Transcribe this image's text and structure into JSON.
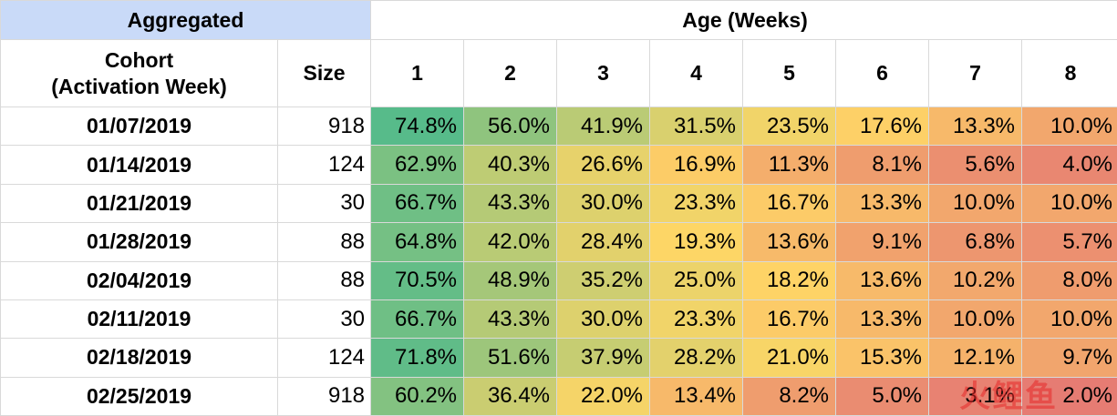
{
  "header": {
    "aggregated": "Aggregated",
    "age": "Age (Weeks)",
    "cohort_line1": "Cohort",
    "cohort_line2": "(Activation Week)",
    "size": "Size",
    "weeks": [
      "1",
      "2",
      "3",
      "4",
      "5",
      "6",
      "7",
      "8"
    ]
  },
  "rows": [
    {
      "date": "01/07/2019",
      "size": "918",
      "values": [
        "74.8%",
        "56.0%",
        "41.9%",
        "31.5%",
        "23.5%",
        "17.6%",
        "13.3%",
        "10.0%"
      ]
    },
    {
      "date": "01/14/2019",
      "size": "124",
      "values": [
        "62.9%",
        "40.3%",
        "26.6%",
        "16.9%",
        "11.3%",
        "8.1%",
        "5.6%",
        "4.0%"
      ]
    },
    {
      "date": "01/21/2019",
      "size": "30",
      "values": [
        "66.7%",
        "43.3%",
        "30.0%",
        "23.3%",
        "16.7%",
        "13.3%",
        "10.0%",
        "10.0%"
      ]
    },
    {
      "date": "01/28/2019",
      "size": "88",
      "values": [
        "64.8%",
        "42.0%",
        "28.4%",
        "19.3%",
        "13.6%",
        "9.1%",
        "6.8%",
        "5.7%"
      ]
    },
    {
      "date": "02/04/2019",
      "size": "88",
      "values": [
        "70.5%",
        "48.9%",
        "35.2%",
        "25.0%",
        "18.2%",
        "13.6%",
        "10.2%",
        "8.0%"
      ]
    },
    {
      "date": "02/11/2019",
      "size": "30",
      "values": [
        "66.7%",
        "43.3%",
        "30.0%",
        "23.3%",
        "16.7%",
        "13.3%",
        "10.0%",
        "10.0%"
      ]
    },
    {
      "date": "02/18/2019",
      "size": "124",
      "values": [
        "71.8%",
        "51.6%",
        "37.9%",
        "28.2%",
        "21.0%",
        "15.3%",
        "12.1%",
        "9.7%"
      ]
    },
    {
      "date": "02/25/2019",
      "size": "918",
      "values": [
        "60.2%",
        "36.4%",
        "22.0%",
        "13.4%",
        "8.2%",
        "5.0%",
        "3.1%",
        "2.0%"
      ]
    }
  ],
  "chart_data": {
    "type": "heatmap",
    "title": "",
    "xlabel": "Age (Weeks)",
    "ylabel": "Cohort (Activation Week)",
    "x": [
      1,
      2,
      3,
      4,
      5,
      6,
      7,
      8
    ],
    "y": [
      "01/07/2019",
      "01/14/2019",
      "01/21/2019",
      "01/28/2019",
      "02/04/2019",
      "02/11/2019",
      "02/18/2019",
      "02/25/2019"
    ],
    "sizes": [
      918,
      124,
      30,
      88,
      88,
      30,
      124,
      918
    ],
    "values": [
      [
        74.8,
        56.0,
        41.9,
        31.5,
        23.5,
        17.6,
        13.3,
        10.0
      ],
      [
        62.9,
        40.3,
        26.6,
        16.9,
        11.3,
        8.1,
        5.6,
        4.0
      ],
      [
        66.7,
        43.3,
        30.0,
        23.3,
        16.7,
        13.3,
        10.0,
        10.0
      ],
      [
        64.8,
        42.0,
        28.4,
        19.3,
        13.6,
        9.1,
        6.8,
        5.7
      ],
      [
        70.5,
        48.9,
        35.2,
        25.0,
        18.2,
        13.6,
        10.2,
        8.0
      ],
      [
        66.7,
        43.3,
        30.0,
        23.3,
        16.7,
        13.3,
        10.0,
        10.0
      ],
      [
        71.8,
        51.6,
        37.9,
        28.2,
        21.0,
        15.3,
        12.1,
        9.7
      ],
      [
        60.2,
        36.4,
        22.0,
        13.4,
        8.2,
        5.0,
        3.1,
        2.0
      ]
    ],
    "color_scale": {
      "min_color": "#e67c73",
      "mid_color": "#ffd666",
      "max_color": "#57bb8a"
    }
  },
  "watermark": "火鲤鱼"
}
